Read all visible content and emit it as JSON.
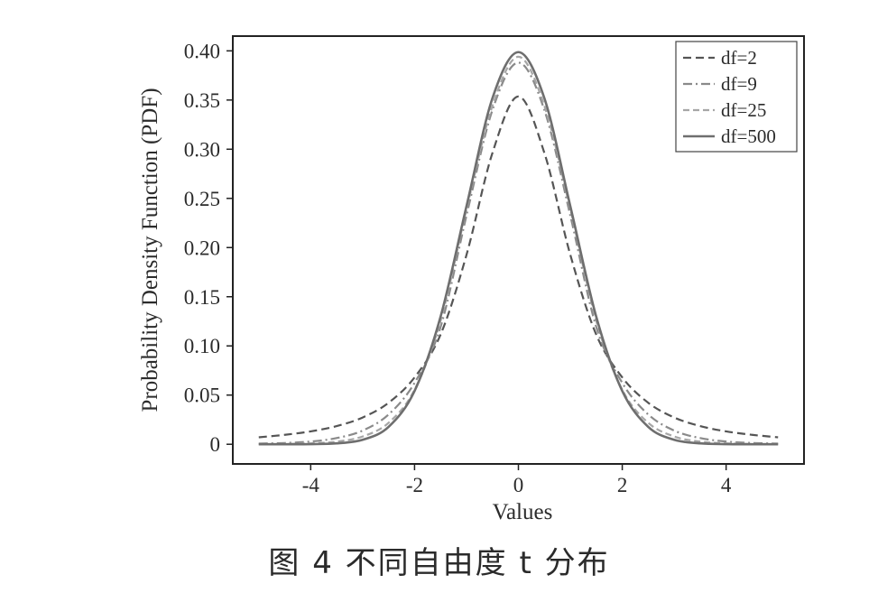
{
  "caption": "图 4 不同自由度 t 分布",
  "chart_data": {
    "type": "line",
    "title": "",
    "xlabel": "Values",
    "ylabel": "Probability Density Function (PDF)",
    "xlim": [
      -5.5,
      5.5
    ],
    "ylim": [
      -0.02,
      0.415
    ],
    "xticks": [
      -4,
      -2,
      0,
      2,
      4
    ],
    "xtick_labels": [
      "-4",
      "-2",
      "0",
      "2",
      "4"
    ],
    "yticks": [
      0,
      0.05,
      0.1,
      0.15,
      0.2,
      0.25,
      0.3,
      0.35,
      0.4
    ],
    "ytick_labels": [
      "0",
      "0.05",
      "0.10",
      "0.15",
      "0.20",
      "0.25",
      "0.30",
      "0.35",
      "0.40"
    ],
    "grid": false,
    "legend_position": "top-right",
    "x": [
      -5,
      -4.5,
      -4,
      -3.5,
      -3,
      -2.5,
      -2,
      -1.5,
      -1,
      -0.5,
      0,
      0.5,
      1,
      1.5,
      2,
      2.5,
      3,
      3.5,
      4,
      4.5,
      5
    ],
    "series": [
      {
        "name": "df=2",
        "style": "dashed",
        "color": "#555555",
        "values": [
          0.0071,
          0.0096,
          0.0131,
          0.0185,
          0.0272,
          0.0422,
          0.068,
          0.1114,
          0.1925,
          0.2962,
          0.3536,
          0.2962,
          0.1925,
          0.1114,
          0.068,
          0.0422,
          0.0272,
          0.0185,
          0.0131,
          0.0096,
          0.0071
        ]
      },
      {
        "name": "df=9",
        "style": "dashdot",
        "color": "#8a8a8a",
        "values": [
          0.0007,
          0.0013,
          0.0028,
          0.0063,
          0.0139,
          0.0303,
          0.0624,
          0.1191,
          0.2325,
          0.3399,
          0.388,
          0.3399,
          0.2325,
          0.1191,
          0.0624,
          0.0303,
          0.0139,
          0.0063,
          0.0028,
          0.0013,
          0.0007
        ]
      },
      {
        "name": "df=25",
        "style": "dashed-light",
        "color": "#a6a6a6",
        "values": [
          0.0001,
          0.0003,
          0.0009,
          0.0027,
          0.0079,
          0.0218,
          0.0554,
          0.1254,
          0.2389,
          0.3442,
          0.394,
          0.3442,
          0.2389,
          0.1254,
          0.0554,
          0.0218,
          0.0079,
          0.0027,
          0.0009,
          0.0003,
          0.0001
        ]
      },
      {
        "name": "df=500",
        "style": "solid",
        "color": "#6e6e6e",
        "values": [
          0.0,
          0.0,
          0.0001,
          0.0009,
          0.0045,
          0.0177,
          0.0542,
          0.1295,
          0.242,
          0.3519,
          0.3987,
          0.3519,
          0.242,
          0.1295,
          0.0542,
          0.0177,
          0.0045,
          0.0009,
          0.0001,
          0.0,
          0.0
        ]
      }
    ]
  }
}
